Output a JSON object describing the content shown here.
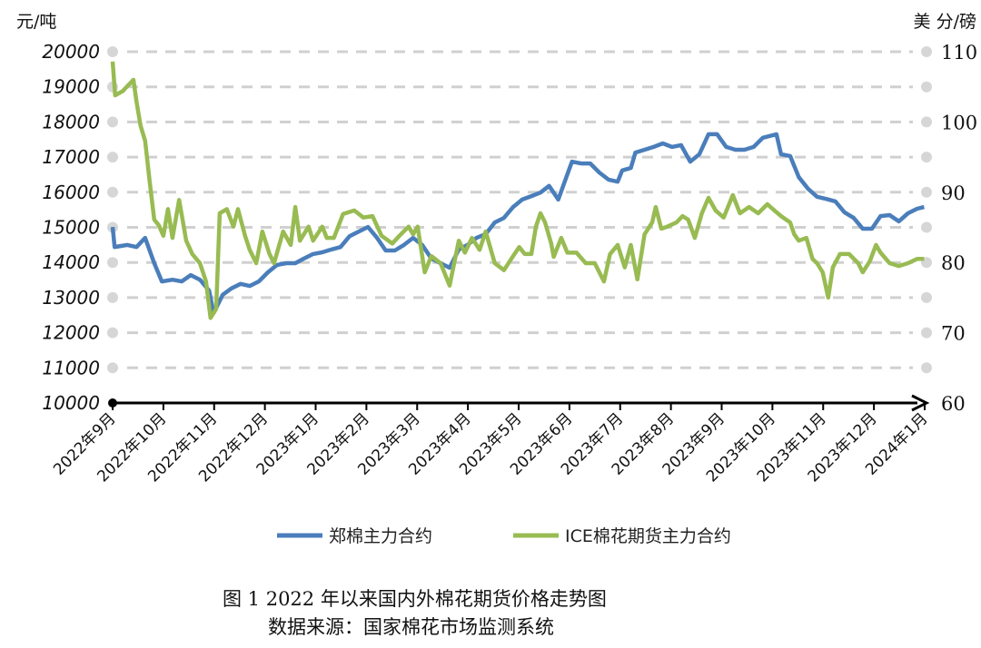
{
  "chart_data": {
    "type": "line",
    "title": "图 1 2022 年以来国内外棉花期货价格走势图",
    "source": "数据来源：国家棉花市场监测系统",
    "ylabel_left": "元/吨",
    "ylabel_right": "美 分/磅",
    "ylim_left": [
      10000,
      20000
    ],
    "ylim_right": [
      60,
      110
    ],
    "yticks_left": [
      "10000",
      "11000",
      "12000",
      "13000",
      "14000",
      "15000",
      "16000",
      "17000",
      "18000",
      "19000",
      "20000"
    ],
    "yticks_right": [
      "60",
      "70",
      "80",
      "90",
      "100",
      "110"
    ],
    "x_unit": "months since 2022年9月",
    "xticks": [
      "2022年9月",
      "2022年10月",
      "2022年11月",
      "2022年12月",
      "2023年1月",
      "2023年2月",
      "2023年3月",
      "2023年4月",
      "2023年5月",
      "2023年6月",
      "2023年7月",
      "2023年8月",
      "2023年9月",
      "2023年10月",
      "2023年11月",
      "2023年12月",
      "2024年1月"
    ],
    "grid": true,
    "legend_position": "bottom",
    "colors": {
      "zce": "#4a7ebb",
      "ice": "#98bb52",
      "grid": "#d0d0d0"
    },
    "series": [
      {
        "name": "郑棉主力合约",
        "axis": "left",
        "color": "#4a7ebb",
        "points": [
          [
            0,
            15010
          ],
          [
            0.04,
            14440
          ],
          [
            0.29,
            14500
          ],
          [
            0.47,
            14440
          ],
          [
            0.64,
            14700
          ],
          [
            0.82,
            13980
          ],
          [
            0.97,
            13460
          ],
          [
            1.18,
            13510
          ],
          [
            1.36,
            13460
          ],
          [
            1.54,
            13640
          ],
          [
            1.72,
            13510
          ],
          [
            1.9,
            13200
          ],
          [
            1.99,
            12560
          ],
          [
            2.17,
            13080
          ],
          [
            2.34,
            13260
          ],
          [
            2.52,
            13390
          ],
          [
            2.7,
            13330
          ],
          [
            2.88,
            13460
          ],
          [
            3.06,
            13720
          ],
          [
            3.24,
            13930
          ],
          [
            3.42,
            13980
          ],
          [
            3.6,
            13980
          ],
          [
            3.77,
            14110
          ],
          [
            3.95,
            14240
          ],
          [
            4.13,
            14290
          ],
          [
            4.31,
            14370
          ],
          [
            4.49,
            14440
          ],
          [
            4.67,
            14750
          ],
          [
            4.85,
            14880
          ],
          [
            5.03,
            15010
          ],
          [
            5.21,
            14700
          ],
          [
            5.38,
            14340
          ],
          [
            5.56,
            14340
          ],
          [
            5.74,
            14500
          ],
          [
            5.92,
            14700
          ],
          [
            6.1,
            14500
          ],
          [
            6.28,
            14110
          ],
          [
            6.46,
            13980
          ],
          [
            6.64,
            13850
          ],
          [
            6.82,
            14370
          ],
          [
            6.99,
            14500
          ],
          [
            7.17,
            14700
          ],
          [
            7.35,
            14810
          ],
          [
            7.53,
            15140
          ],
          [
            7.71,
            15270
          ],
          [
            7.89,
            15580
          ],
          [
            8.07,
            15790
          ],
          [
            8.25,
            15890
          ],
          [
            8.43,
            15990
          ],
          [
            8.6,
            16180
          ],
          [
            8.78,
            15790
          ],
          [
            8.96,
            16510
          ],
          [
            9.05,
            16870
          ],
          [
            9.23,
            16820
          ],
          [
            9.41,
            16820
          ],
          [
            9.59,
            16560
          ],
          [
            9.77,
            16360
          ],
          [
            9.95,
            16300
          ],
          [
            10.04,
            16620
          ],
          [
            10.21,
            16690
          ],
          [
            10.3,
            17130
          ],
          [
            10.48,
            17210
          ],
          [
            10.66,
            17290
          ],
          [
            10.84,
            17390
          ],
          [
            11.02,
            17290
          ],
          [
            11.2,
            17340
          ],
          [
            11.38,
            16870
          ],
          [
            11.56,
            17080
          ],
          [
            11.74,
            17650
          ],
          [
            11.91,
            17650
          ],
          [
            12.09,
            17290
          ],
          [
            12.27,
            17210
          ],
          [
            12.45,
            17210
          ],
          [
            12.63,
            17290
          ],
          [
            12.81,
            17550
          ],
          [
            13.08,
            17650
          ],
          [
            13.17,
            17080
          ],
          [
            13.35,
            17030
          ],
          [
            13.52,
            16430
          ],
          [
            13.7,
            16100
          ],
          [
            13.88,
            15870
          ],
          [
            14.06,
            15810
          ],
          [
            14.24,
            15740
          ],
          [
            14.42,
            15430
          ],
          [
            14.6,
            15270
          ],
          [
            14.78,
            14960
          ],
          [
            14.96,
            14960
          ],
          [
            15.13,
            15320
          ],
          [
            15.31,
            15350
          ],
          [
            15.49,
            15170
          ],
          [
            15.67,
            15400
          ],
          [
            15.85,
            15530
          ],
          [
            15.99,
            15580
          ]
        ]
      },
      {
        "name": "ICE棉花期货主力合约",
        "axis": "right",
        "color": "#98bb52",
        "points": [
          [
            0,
            108.6
          ],
          [
            0.05,
            103.8
          ],
          [
            0.2,
            104.4
          ],
          [
            0.29,
            105.1
          ],
          [
            0.41,
            106
          ],
          [
            0.47,
            102.9
          ],
          [
            0.55,
            99.5
          ],
          [
            0.64,
            97.3
          ],
          [
            0.73,
            91.5
          ],
          [
            0.82,
            86.1
          ],
          [
            0.91,
            85.3
          ],
          [
            1,
            83.8
          ],
          [
            1.09,
            87.6
          ],
          [
            1.18,
            83.5
          ],
          [
            1.31,
            88.9
          ],
          [
            1.45,
            83.1
          ],
          [
            1.57,
            81.2
          ],
          [
            1.72,
            79.9
          ],
          [
            1.84,
            77.3
          ],
          [
            1.93,
            72.1
          ],
          [
            2.04,
            73.4
          ],
          [
            2.11,
            87
          ],
          [
            2.25,
            87.6
          ],
          [
            2.38,
            85.1
          ],
          [
            2.47,
            87.6
          ],
          [
            2.61,
            83.8
          ],
          [
            2.7,
            81.8
          ],
          [
            2.83,
            79.9
          ],
          [
            2.95,
            84.4
          ],
          [
            3.09,
            81.2
          ],
          [
            3.18,
            79.9
          ],
          [
            3.36,
            84.4
          ],
          [
            3.51,
            82.5
          ],
          [
            3.6,
            87.9
          ],
          [
            3.69,
            83.1
          ],
          [
            3.86,
            85.1
          ],
          [
            3.95,
            83.1
          ],
          [
            4.13,
            85.1
          ],
          [
            4.22,
            83.5
          ],
          [
            4.36,
            83.5
          ],
          [
            4.54,
            86.9
          ],
          [
            4.76,
            87.4
          ],
          [
            4.94,
            86.4
          ],
          [
            5.12,
            86.6
          ],
          [
            5.3,
            83.8
          ],
          [
            5.51,
            82.7
          ],
          [
            5.65,
            83.8
          ],
          [
            5.83,
            85.1
          ],
          [
            5.92,
            84
          ],
          [
            6.01,
            85.1
          ],
          [
            6.15,
            78.6
          ],
          [
            6.28,
            80.9
          ],
          [
            6.46,
            79.9
          ],
          [
            6.64,
            76.7
          ],
          [
            6.82,
            83.1
          ],
          [
            6.94,
            81.4
          ],
          [
            7.08,
            83.5
          ],
          [
            7.23,
            81.8
          ],
          [
            7.35,
            84.4
          ],
          [
            7.53,
            79.9
          ],
          [
            7.71,
            78.9
          ],
          [
            7.89,
            80.9
          ],
          [
            8.01,
            82.2
          ],
          [
            8.12,
            81.2
          ],
          [
            8.25,
            81.2
          ],
          [
            8.34,
            85.1
          ],
          [
            8.43,
            87
          ],
          [
            8.52,
            85.7
          ],
          [
            8.64,
            82.7
          ],
          [
            8.69,
            80.8
          ],
          [
            8.84,
            83.5
          ],
          [
            8.96,
            81.4
          ],
          [
            9.14,
            81.4
          ],
          [
            9.32,
            79.9
          ],
          [
            9.5,
            79.9
          ],
          [
            9.68,
            77.3
          ],
          [
            9.8,
            81.2
          ],
          [
            9.95,
            82.5
          ],
          [
            10.09,
            79.3
          ],
          [
            10.21,
            82.5
          ],
          [
            10.34,
            77.6
          ],
          [
            10.48,
            84
          ],
          [
            10.63,
            85.7
          ],
          [
            10.7,
            87.9
          ],
          [
            10.81,
            84.8
          ],
          [
            10.93,
            85.1
          ],
          [
            11.11,
            85.7
          ],
          [
            11.23,
            86.6
          ],
          [
            11.34,
            86.1
          ],
          [
            11.47,
            83.5
          ],
          [
            11.61,
            87
          ],
          [
            11.74,
            89.2
          ],
          [
            11.88,
            87.4
          ],
          [
            12.04,
            86.4
          ],
          [
            12.22,
            89.6
          ],
          [
            12.36,
            87
          ],
          [
            12.54,
            87.9
          ],
          [
            12.72,
            87
          ],
          [
            12.9,
            88.3
          ],
          [
            13.04,
            87.4
          ],
          [
            13.17,
            86.6
          ],
          [
            13.35,
            85.7
          ],
          [
            13.43,
            84
          ],
          [
            13.52,
            83.1
          ],
          [
            13.67,
            83.5
          ],
          [
            13.79,
            80.5
          ],
          [
            13.88,
            79.9
          ],
          [
            13.99,
            78.6
          ],
          [
            14.1,
            75
          ],
          [
            14.19,
            79.3
          ],
          [
            14.33,
            81.2
          ],
          [
            14.51,
            81.2
          ],
          [
            14.69,
            79.9
          ],
          [
            14.78,
            78.6
          ],
          [
            14.92,
            80.2
          ],
          [
            15.04,
            82.5
          ],
          [
            15.13,
            81.4
          ],
          [
            15.31,
            79.9
          ],
          [
            15.49,
            79.5
          ],
          [
            15.67,
            79.9
          ],
          [
            15.85,
            80.5
          ],
          [
            15.99,
            80.5
          ]
        ]
      }
    ]
  }
}
